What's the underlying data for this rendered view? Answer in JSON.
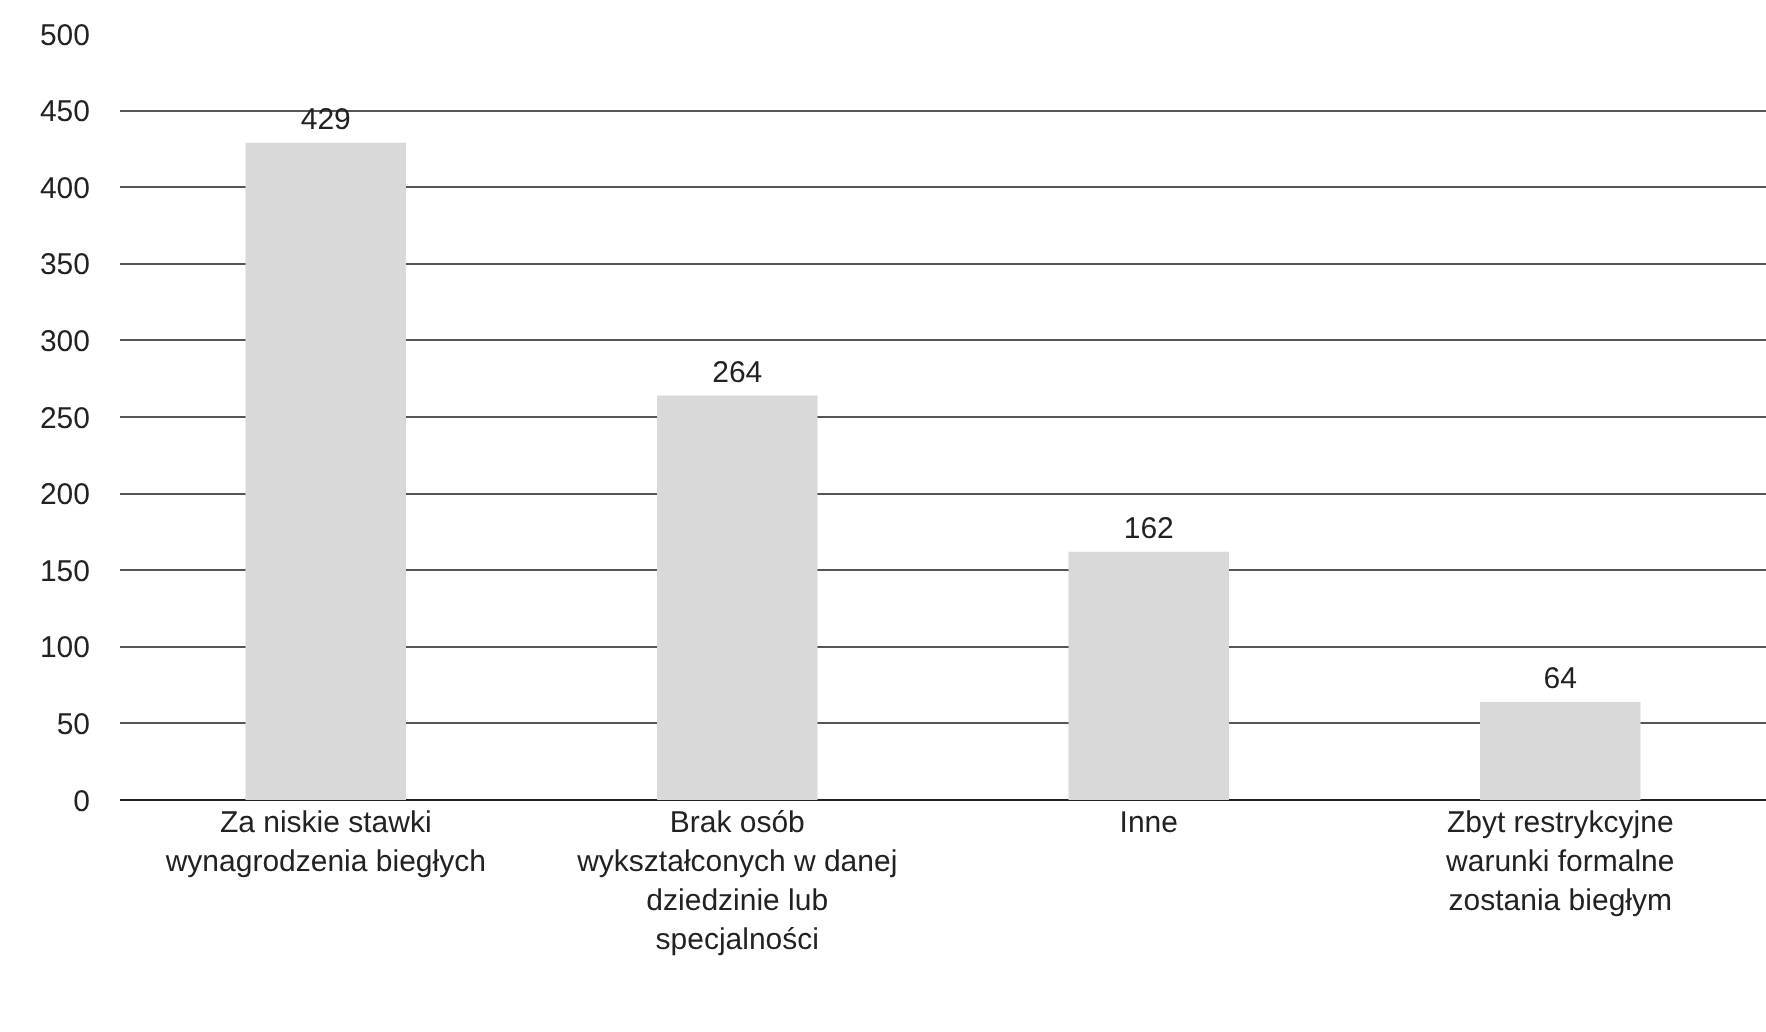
{
  "chart_data": {
    "type": "bar",
    "categories": [
      "Za niskie stawki wynagrodzenia biegłych",
      "Brak osób wykształconych w danej dziedzinie lub specjalności",
      "Inne",
      "Zbyt restrykcyjne warunki formalne zostania biegłym"
    ],
    "values": [
      429,
      264,
      162,
      64
    ],
    "color": "#d9d9d9",
    "data_labels": true,
    "ylim": [
      0,
      500
    ],
    "yticks": [
      0,
      50,
      100,
      150,
      200,
      250,
      300,
      350,
      400,
      450,
      500
    ],
    "grid": "y"
  }
}
